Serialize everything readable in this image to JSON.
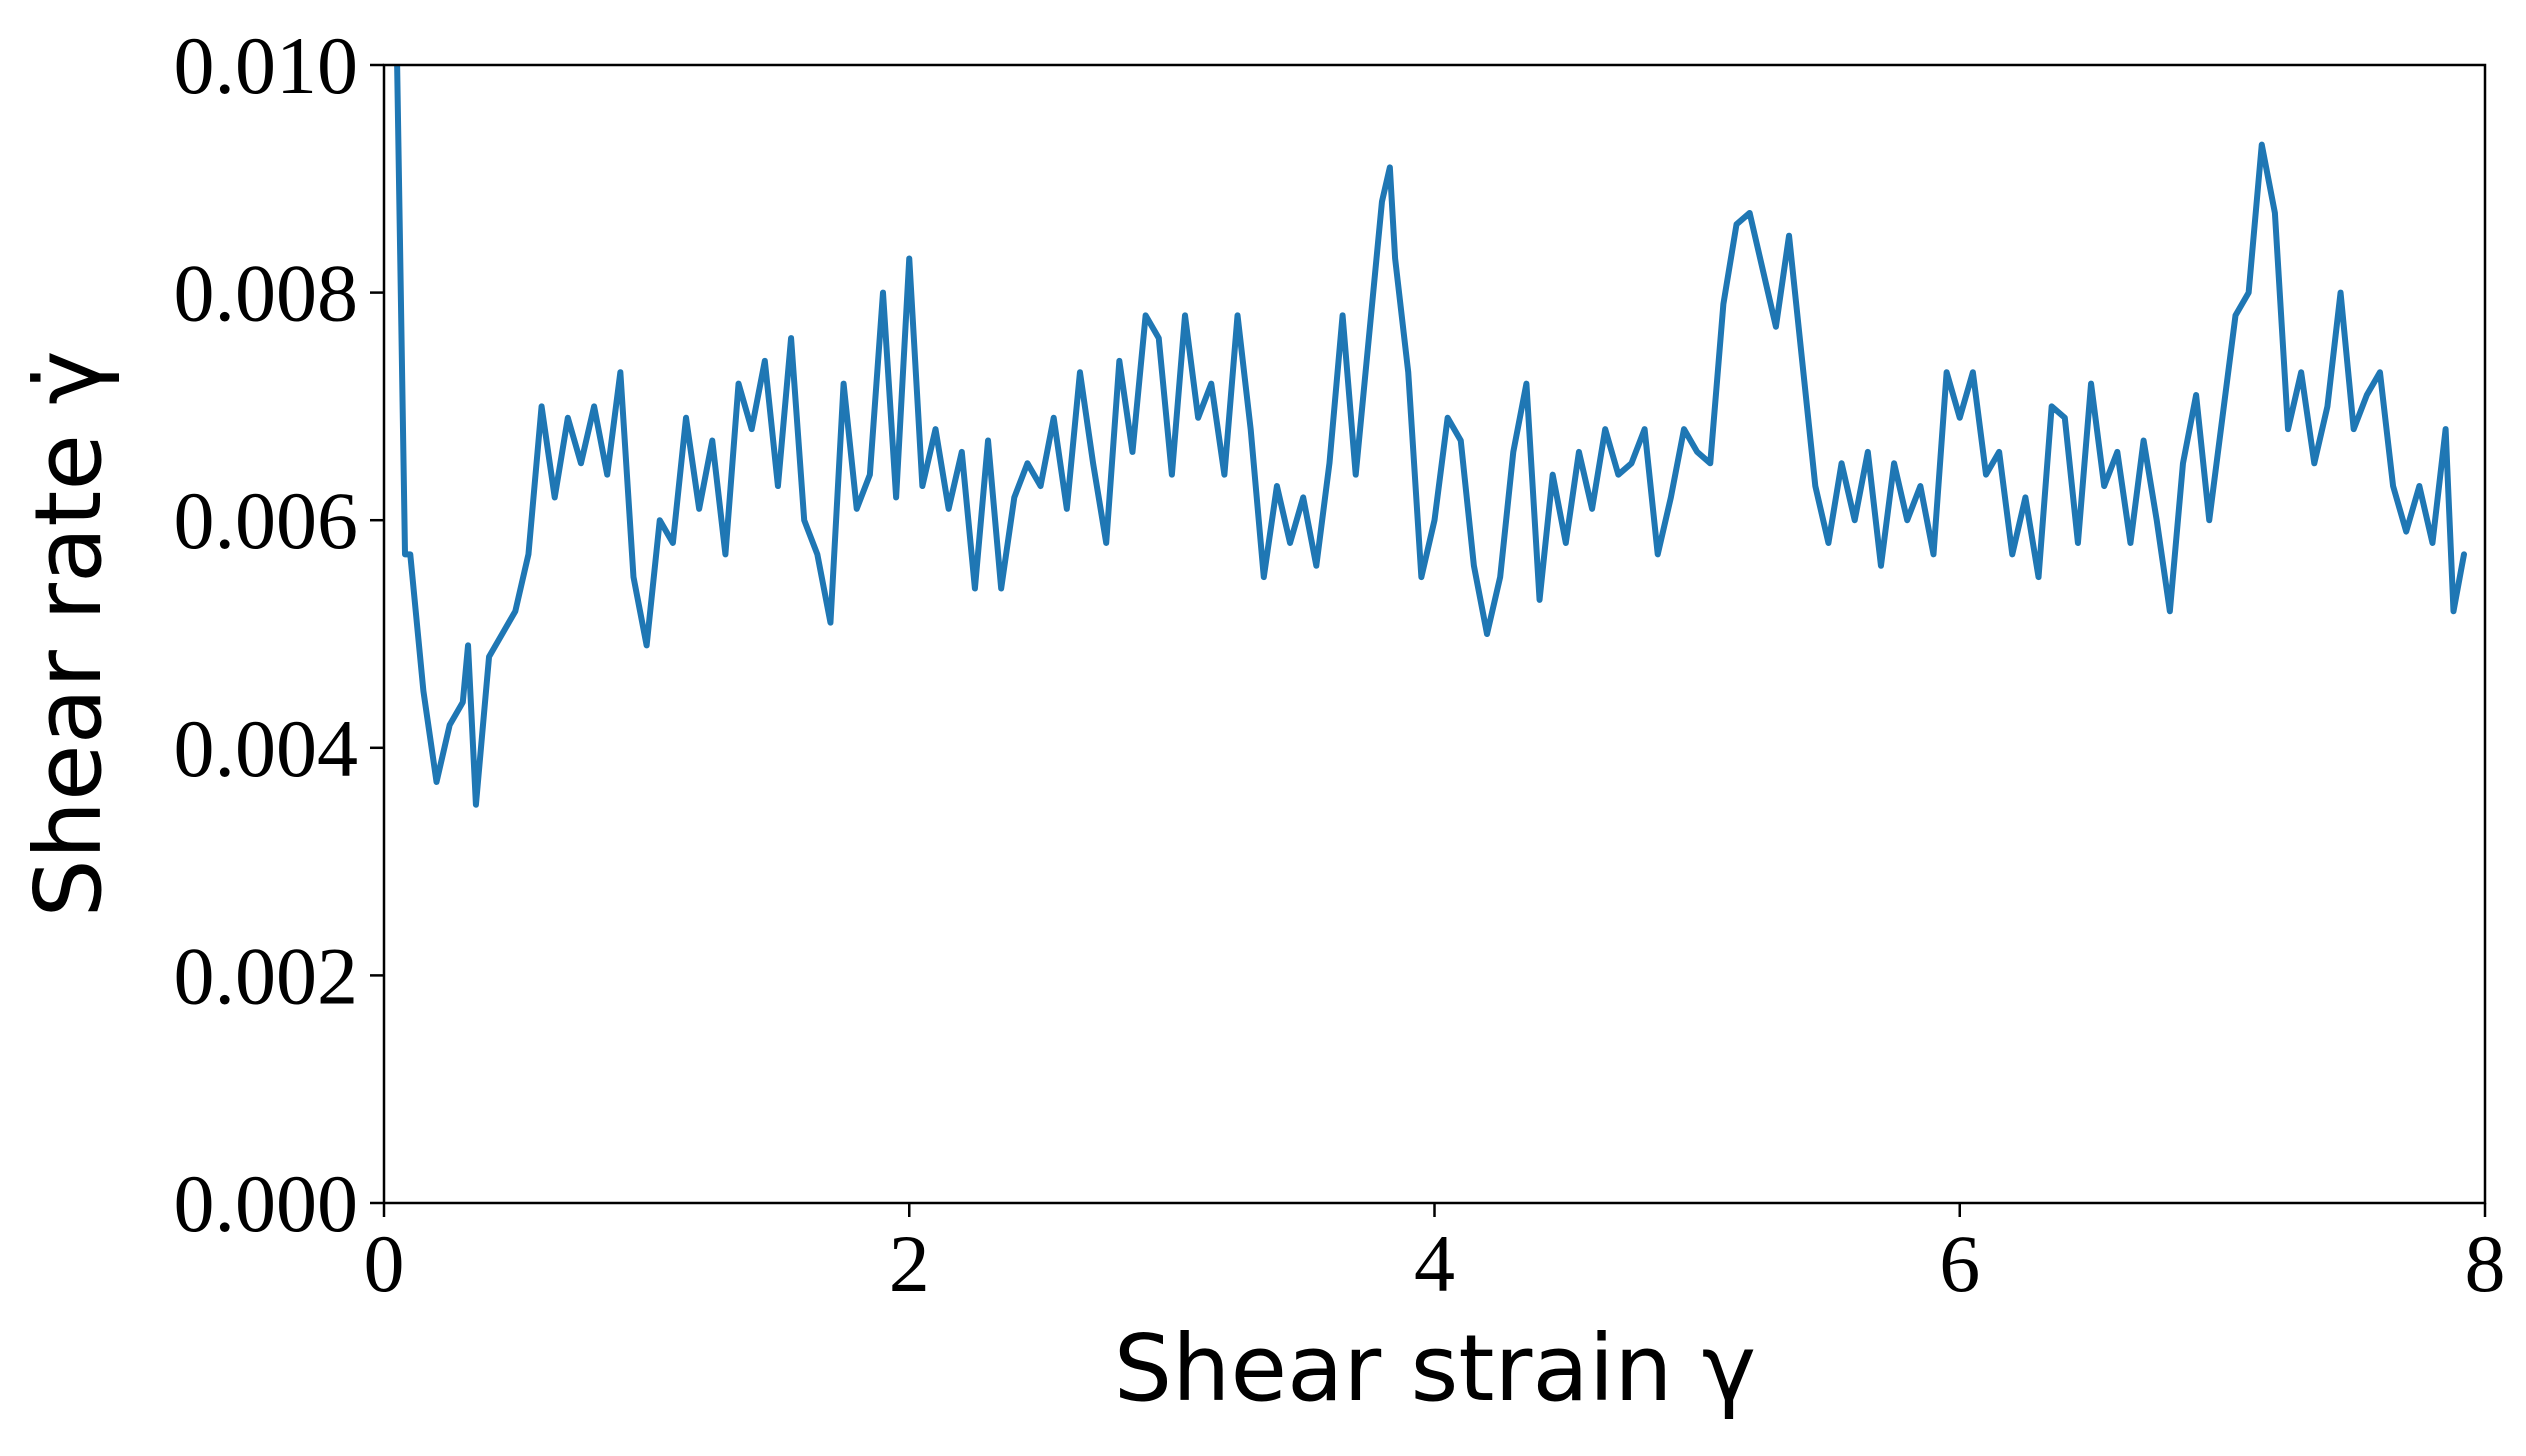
{
  "chart_data": {
    "type": "line",
    "x_label": "Shear strain γ",
    "y_label": "Shear rate γ̇",
    "xlim": [
      0,
      8
    ],
    "ylim": [
      0,
      0.01
    ],
    "xticks": [
      0,
      2,
      4,
      6,
      8
    ],
    "yticks": [
      {
        "value": 0,
        "label": "0.000"
      },
      0.002,
      0.004,
      0.006,
      0.008,
      {
        "value": 0.01,
        "label": "0.010"
      }
    ],
    "grid": false,
    "series": [
      {
        "color": "#1f77b4",
        "x": [
          0.05,
          0.08,
          0.1,
          0.15,
          0.2,
          0.25,
          0.3,
          0.32,
          0.35,
          0.4,
          0.45,
          0.5,
          0.55,
          0.6,
          0.65,
          0.7,
          0.75,
          0.8,
          0.85,
          0.9,
          0.95,
          1.0,
          1.05,
          1.1,
          1.15,
          1.2,
          1.25,
          1.3,
          1.35,
          1.4,
          1.45,
          1.5,
          1.55,
          1.6,
          1.65,
          1.7,
          1.75,
          1.8,
          1.85,
          1.9,
          1.95,
          2.0,
          2.05,
          2.1,
          2.15,
          2.2,
          2.25,
          2.3,
          2.35,
          2.4,
          2.45,
          2.5,
          2.55,
          2.6,
          2.65,
          2.7,
          2.75,
          2.8,
          2.85,
          2.9,
          2.95,
          3.0,
          3.05,
          3.1,
          3.15,
          3.2,
          3.25,
          3.3,
          3.35,
          3.4,
          3.45,
          3.5,
          3.55,
          3.6,
          3.65,
          3.7,
          3.75,
          3.8,
          3.83,
          3.85,
          3.9,
          3.95,
          4.0,
          4.05,
          4.1,
          4.15,
          4.2,
          4.25,
          4.3,
          4.35,
          4.4,
          4.45,
          4.5,
          4.55,
          4.6,
          4.65,
          4.7,
          4.75,
          4.8,
          4.85,
          4.9,
          4.95,
          5.0,
          5.05,
          5.1,
          5.15,
          5.2,
          5.25,
          5.3,
          5.35,
          5.4,
          5.45,
          5.5,
          5.55,
          5.6,
          5.65,
          5.7,
          5.75,
          5.8,
          5.85,
          5.9,
          5.95,
          6.0,
          6.05,
          6.1,
          6.15,
          6.2,
          6.25,
          6.3,
          6.35,
          6.4,
          6.45,
          6.5,
          6.55,
          6.6,
          6.65,
          6.7,
          6.75,
          6.8,
          6.85,
          6.9,
          6.95,
          7.0,
          7.05,
          7.1,
          7.15,
          7.2,
          7.25,
          7.3,
          7.35,
          7.4,
          7.45,
          7.5,
          7.55,
          7.6,
          7.65,
          7.7,
          7.75,
          7.8,
          7.85,
          7.88,
          7.92
        ],
        "values": [
          0.01,
          0.0057,
          0.0057,
          0.0045,
          0.0037,
          0.0042,
          0.0044,
          0.0049,
          0.0035,
          0.0048,
          0.005,
          0.0052,
          0.0057,
          0.007,
          0.0062,
          0.0069,
          0.0065,
          0.007,
          0.0064,
          0.0073,
          0.0055,
          0.0049,
          0.006,
          0.0058,
          0.0069,
          0.0061,
          0.0067,
          0.0057,
          0.0072,
          0.0068,
          0.0074,
          0.0063,
          0.0076,
          0.006,
          0.0057,
          0.0051,
          0.0072,
          0.0061,
          0.0064,
          0.008,
          0.0062,
          0.0083,
          0.0063,
          0.0068,
          0.0061,
          0.0066,
          0.0054,
          0.0067,
          0.0054,
          0.0062,
          0.0065,
          0.0063,
          0.0069,
          0.0061,
          0.0073,
          0.0065,
          0.0058,
          0.0074,
          0.0066,
          0.0078,
          0.0076,
          0.0064,
          0.0078,
          0.0069,
          0.0072,
          0.0064,
          0.0078,
          0.0068,
          0.0055,
          0.0063,
          0.0058,
          0.0062,
          0.0056,
          0.0065,
          0.0078,
          0.0064,
          0.0076,
          0.0088,
          0.0091,
          0.0083,
          0.0073,
          0.0055,
          0.006,
          0.0069,
          0.0067,
          0.0056,
          0.005,
          0.0055,
          0.0066,
          0.0072,
          0.0053,
          0.0064,
          0.0058,
          0.0066,
          0.0061,
          0.0068,
          0.0064,
          0.0065,
          0.0068,
          0.0057,
          0.0062,
          0.0068,
          0.0066,
          0.0065,
          0.0079,
          0.0086,
          0.0087,
          0.0082,
          0.0077,
          0.0085,
          0.0074,
          0.0063,
          0.0058,
          0.0065,
          0.006,
          0.0066,
          0.0056,
          0.0065,
          0.006,
          0.0063,
          0.0057,
          0.0073,
          0.0069,
          0.0073,
          0.0064,
          0.0066,
          0.0057,
          0.0062,
          0.0055,
          0.007,
          0.0069,
          0.0058,
          0.0072,
          0.0063,
          0.0066,
          0.0058,
          0.0067,
          0.006,
          0.0052,
          0.0065,
          0.0071,
          0.006,
          0.0069,
          0.0078,
          0.008,
          0.0093,
          0.0087,
          0.0068,
          0.0073,
          0.0065,
          0.007,
          0.008,
          0.0068,
          0.0071,
          0.0073,
          0.0063,
          0.0059,
          0.0063,
          0.0058,
          0.0068,
          0.0052,
          0.0057
        ]
      }
    ]
  }
}
